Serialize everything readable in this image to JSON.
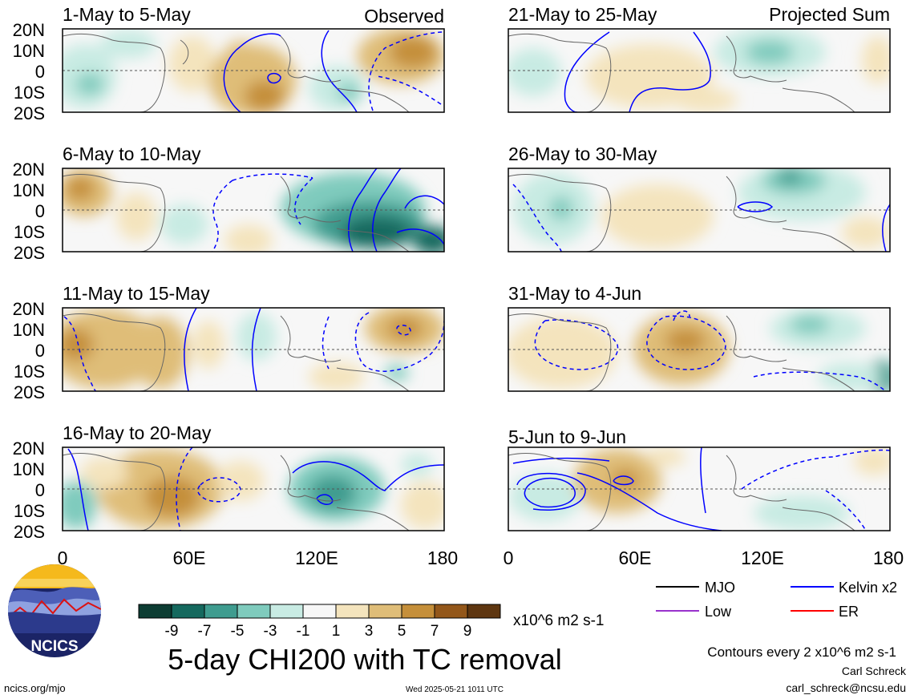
{
  "panels_left": [
    {
      "title": "1-May to 5-May",
      "tag": "Observed"
    },
    {
      "title": "6-May to 10-May",
      "tag": ""
    },
    {
      "title": "11-May to 15-May",
      "tag": ""
    },
    {
      "title": "16-May to 20-May",
      "tag": ""
    }
  ],
  "panels_right": [
    {
      "title": "21-May to 25-May",
      "tag": "Projected Sum"
    },
    {
      "title": "26-May to 30-May",
      "tag": ""
    },
    {
      "title": "31-May to 4-Jun",
      "tag": ""
    },
    {
      "title": "5-Jun to 9-Jun",
      "tag": ""
    }
  ],
  "lat_labels": [
    "20N",
    "10N",
    "0",
    "10S",
    "20S"
  ],
  "lon_labels": [
    "0",
    "60E",
    "120E",
    "180"
  ],
  "colorbar": {
    "colors": [
      "#0d3d33",
      "#15695e",
      "#3f9c8f",
      "#7fcbbd",
      "#c8ebe3",
      "#f7f7f7",
      "#f4e4bd",
      "#dfbd78",
      "#c58f3a",
      "#93571a",
      "#5e3610"
    ],
    "ticks": [
      "-9",
      "-7",
      "-5",
      "-3",
      "-1",
      "1",
      "3",
      "5",
      "7",
      "9"
    ],
    "units": "x10^6 m2 s-1"
  },
  "legend": [
    {
      "label": "MJO",
      "color": "#000000"
    },
    {
      "label": "Kelvin x2",
      "color": "#0000ff"
    },
    {
      "label": "Low",
      "color": "#9932cc"
    },
    {
      "label": "ER",
      "color": "#ff0000"
    }
  ],
  "title": "5-day CHI200 with TC removal",
  "contour_note": "Contours every 2 x10^6 m2 s-1",
  "author": "Carl Schreck",
  "email": "carl_schreck@ncsu.edu",
  "site": "ncics.org/mjo",
  "timestamp": "Wed 2025-05-21 1011 UTC",
  "logo_text": "NCICS"
}
